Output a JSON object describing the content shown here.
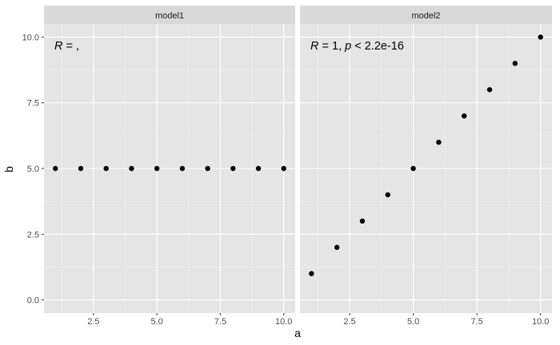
{
  "chart_data": {
    "type": "scatter",
    "xlabel": "a",
    "ylabel": "b",
    "xlim": [
      0.55,
      10.45
    ],
    "ylim": [
      -0.5,
      10.5
    ],
    "x_ticks": [
      2.5,
      5.0,
      7.5,
      10.0
    ],
    "x_tick_labels": [
      "2.5",
      "5.0",
      "7.5",
      "10.0"
    ],
    "y_ticks": [
      0.0,
      2.5,
      5.0,
      7.5,
      10.0
    ],
    "y_tick_labels": [
      "0.0",
      "2.5",
      "5.0",
      "7.5",
      "10.0"
    ],
    "grid": true,
    "panels": [
      {
        "strip": "model1",
        "annotation": {
          "r_symbol": "R",
          "r_value": " = ,",
          "p_part": ""
        },
        "x": [
          1,
          2,
          3,
          4,
          5,
          6,
          7,
          8,
          9,
          10
        ],
        "y": [
          5,
          5,
          5,
          5,
          5,
          5,
          5,
          5,
          5,
          5
        ]
      },
      {
        "strip": "model2",
        "annotation": {
          "r_symbol": "R",
          "r_value": " = 1, ",
          "p_symbol": "p",
          "p_part": " < 2.2e-16"
        },
        "x": [
          1,
          2,
          3,
          4,
          5,
          6,
          7,
          8,
          9,
          10
        ],
        "y": [
          1,
          2,
          3,
          4,
          5,
          6,
          7,
          8,
          9,
          10
        ]
      }
    ],
    "colors": {
      "panel_background": "#e5e5e5",
      "strip_background": "#d9d9d9",
      "grid_major": "#ffffff",
      "grid_minor": "#f2f2f2",
      "point": "#000000"
    }
  }
}
